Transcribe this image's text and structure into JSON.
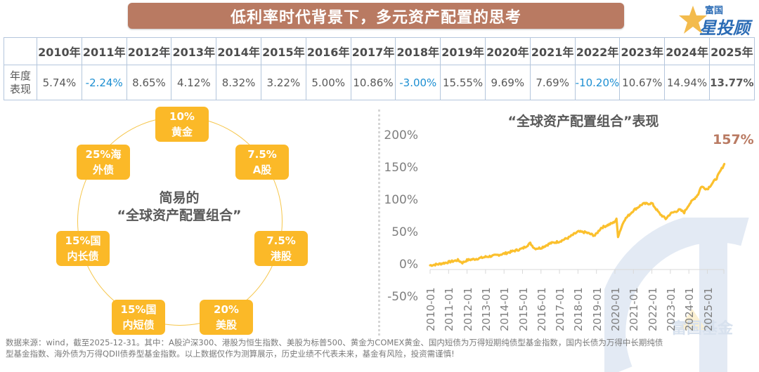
{
  "title": "低利率时代背景下，多元资产配置的思考",
  "logo": {
    "top": "富国",
    "main": "星投顾",
    "watermark": "富国基金"
  },
  "table": {
    "row_label": "年度表现",
    "row_label_lines": [
      "年度",
      "表现"
    ],
    "years": [
      "2010年",
      "2011年",
      "2012年",
      "2013年",
      "2014年",
      "2015年",
      "2016年",
      "2017年",
      "2018年",
      "2019年",
      "2020年",
      "2021年",
      "2022年",
      "2023年",
      "2024年",
      "2025年"
    ],
    "returns": [
      "5.74%",
      "-2.24%",
      "8.65%",
      "4.12%",
      "8.32%",
      "3.22%",
      "5.00%",
      "10.86%",
      "-3.00%",
      "15.55%",
      "9.69%",
      "7.69%",
      "-10.20%",
      "10.67%",
      "14.94%",
      "13.77%"
    ],
    "negative_color": "#1d8fd2"
  },
  "portfolio": {
    "center_line1": "简易的",
    "center_line2": "“全球资产配置组合”",
    "allocations": [
      {
        "pct": "10%",
        "asset": "黄金",
        "line1": "10%",
        "line2": "黄金"
      },
      {
        "pct": "7.5%",
        "asset": "A股",
        "line1": "7.5%",
        "line2": "A股"
      },
      {
        "pct": "7.5%",
        "asset": "港股",
        "line1": "7.5%",
        "line2": "港股"
      },
      {
        "pct": "20%",
        "asset": "美股",
        "line1": "20%",
        "line2": "美股"
      },
      {
        "pct": "15%",
        "asset": "国内短债",
        "line1": "15%国",
        "line2": "内短债"
      },
      {
        "pct": "15%",
        "asset": "国内长债",
        "line1": "15%国",
        "line2": "内长债"
      },
      {
        "pct": "25%",
        "asset": "海外债",
        "line1": "25%海",
        "line2": "外债"
      }
    ],
    "chip_color": "#fbb928"
  },
  "chart_data": {
    "type": "line",
    "title": "“全球资产配置组合”表现",
    "xlabel": "",
    "ylabel": "",
    "ylim": [
      -50,
      200
    ],
    "yticks": [
      "200%",
      "150%",
      "100%",
      "50%",
      "0%",
      "-50%"
    ],
    "categories": [
      "2010-01",
      "2011-01",
      "2012-01",
      "2013-01",
      "2014-01",
      "2015-01",
      "2016-01",
      "2017-01",
      "2018-01",
      "2019-01",
      "2020-01",
      "2021-01",
      "2022-01",
      "2023-01",
      "2024-01",
      "2025-01"
    ],
    "series": [
      {
        "name": "全球资产配置组合累计收益(%)",
        "color": "#fbc02d",
        "x": [
          "2010-01",
          "2010-07",
          "2011-01",
          "2011-07",
          "2011-10",
          "2012-01",
          "2012-07",
          "2013-01",
          "2013-07",
          "2014-01",
          "2014-07",
          "2015-01",
          "2015-06",
          "2015-09",
          "2016-01",
          "2016-07",
          "2017-01",
          "2017-07",
          "2018-01",
          "2018-06",
          "2018-12",
          "2019-04",
          "2019-12",
          "2020-02",
          "2020-03",
          "2020-07",
          "2021-01",
          "2021-07",
          "2022-01",
          "2022-06",
          "2022-10",
          "2023-01",
          "2023-07",
          "2023-10",
          "2024-01",
          "2024-07",
          "2024-09",
          "2025-01",
          "2025-07",
          "2025-12"
        ],
        "values": [
          0,
          2,
          5,
          8,
          4,
          8,
          10,
          13,
          15,
          18,
          22,
          26,
          34,
          26,
          27,
          34,
          37,
          43,
          52,
          51,
          46,
          58,
          66,
          71,
          45,
          70,
          85,
          95,
          96,
          80,
          72,
          80,
          86,
          82,
          94,
          110,
          122,
          118,
          135,
          157
        ]
      }
    ],
    "annotations": [
      {
        "text": "157%",
        "at": "2025-12",
        "color": "#b97a62"
      }
    ],
    "grid": false,
    "legend": "none"
  },
  "footer": {
    "line1": "数据来源：wind，截至2025-12-31。其中：A股沪深300、港股为恒生指数、美股为标普500、黄金为COMEX黄金、国内短债为万得短期纯债型基金指数，国内长债为万得中长期纯债",
    "line2": "型基金指数、海外债为万得QDII债券型基金指数。以上数据仅作为测算展示，历史业绩不代表未来，基金有风险，投资需谨慎!"
  }
}
